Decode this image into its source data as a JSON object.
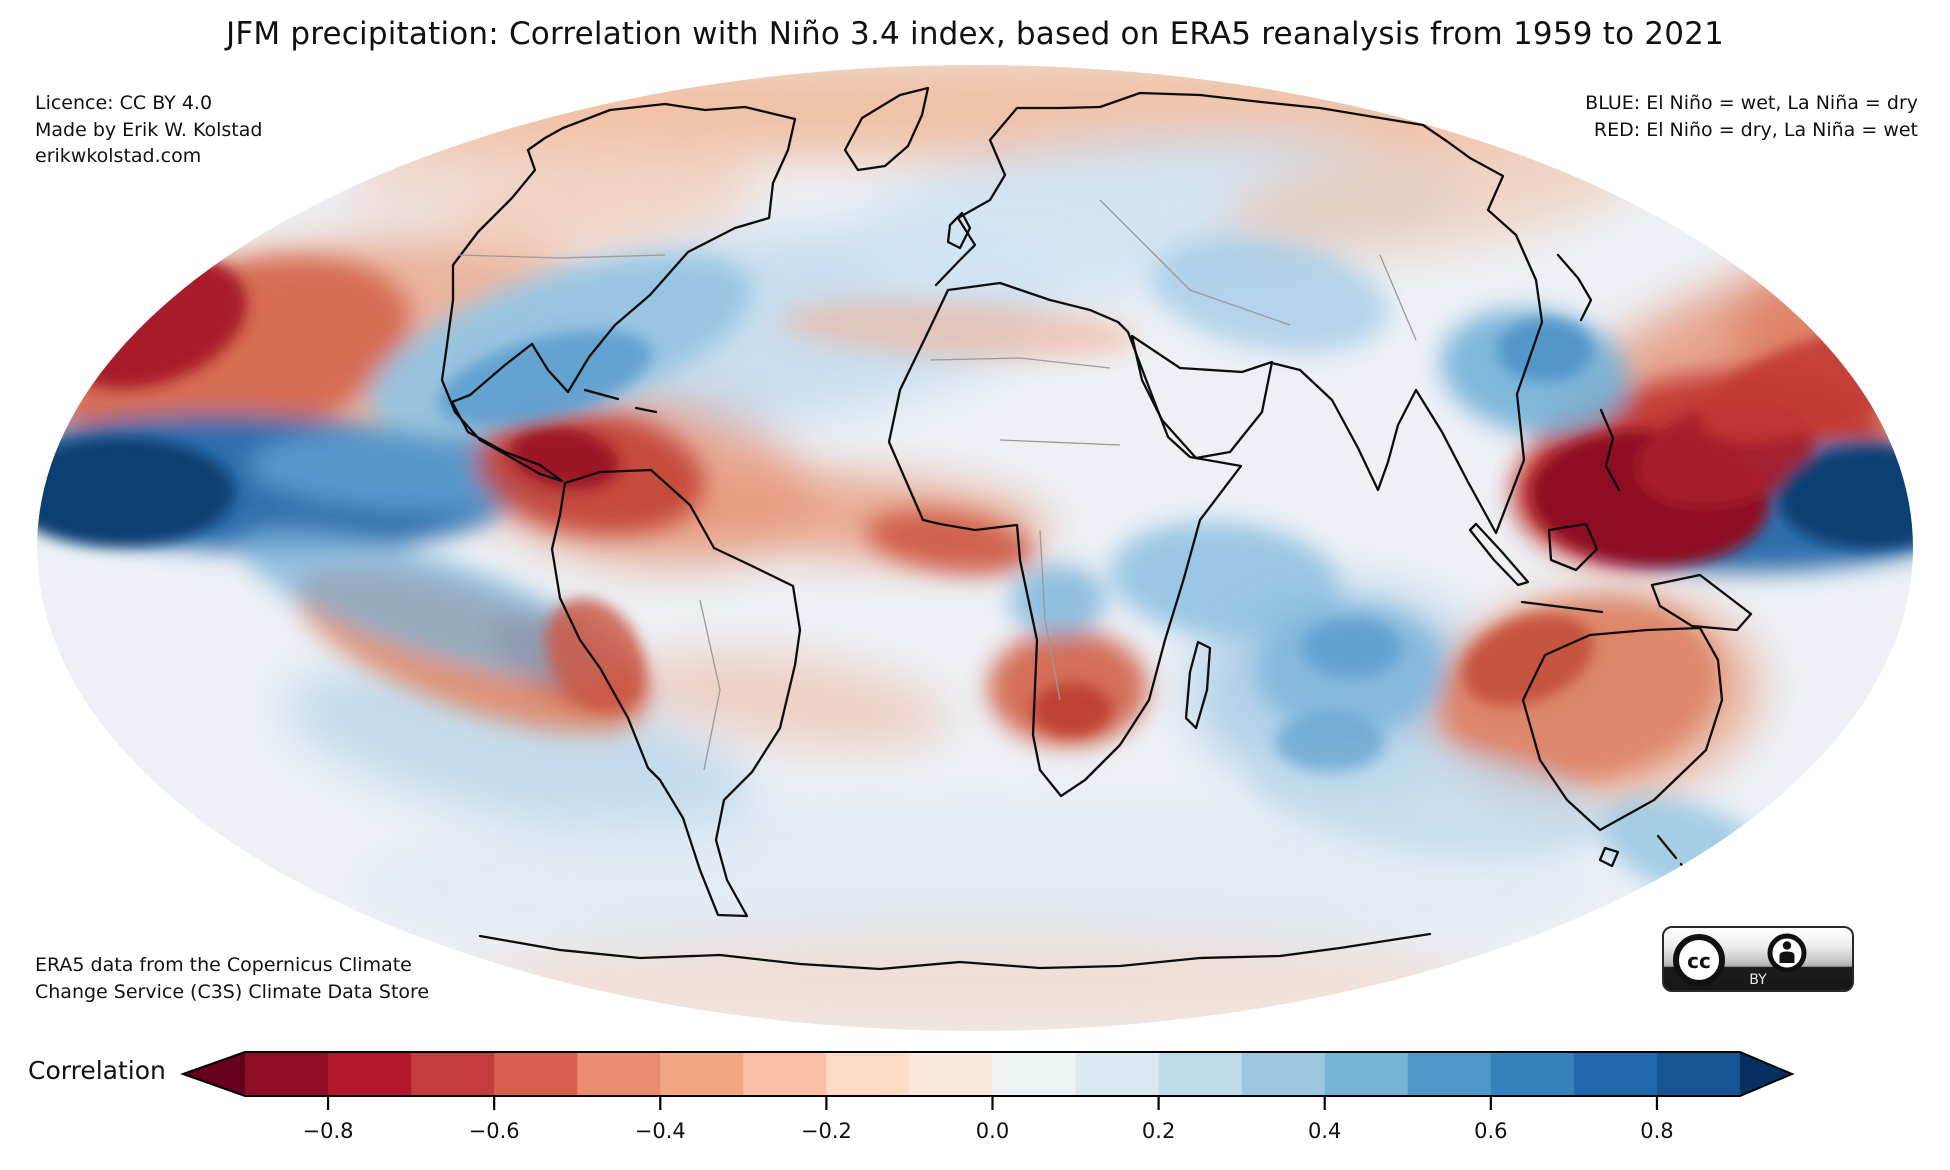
{
  "title": "JFM precipitation: Correlation with Niño 3.4 index, based on ERA5 reanalysis from 1959 to 2021",
  "credits": {
    "line1": "Licence: CC BY 4.0",
    "line2": "Made by Erik W. Kolstad",
    "line3": "erikwkolstad.com"
  },
  "legend": {
    "blue": "BLUE: El Niño = wet, La Niña = dry",
    "red": "RED: El Niño = dry, La Niña = wet"
  },
  "attribution": {
    "line1": "ERA5 data from the Copernicus Climate",
    "line2": "Change Service (C3S) Climate Data Store"
  },
  "badge": {
    "cc": "CC",
    "by": "BY"
  },
  "colorbar": {
    "label": "Correlation",
    "ticks": [
      "−0.8",
      "−0.6",
      "−0.4",
      "−0.2",
      "0.0",
      "0.2",
      "0.4",
      "0.6",
      "0.8"
    ],
    "tick_values": [
      -0.8,
      -0.6,
      -0.4,
      -0.2,
      0.0,
      0.2,
      0.4,
      0.6,
      0.8
    ],
    "range": [
      -0.9,
      0.9
    ],
    "under_color": "#67001f",
    "over_color": "#053061",
    "segment_colors": [
      "#8e0d25",
      "#b2182b",
      "#c43c3d",
      "#d6604d",
      "#e98b6f",
      "#f4a582",
      "#f9c0a6",
      "#fddbc7",
      "#fbe9dc",
      "#edf2f5",
      "#d9e8f1",
      "#c0dceb",
      "#9ac8e0",
      "#78b4d6",
      "#4d98c8",
      "#3582bc",
      "#2268ad",
      "#175493"
    ]
  },
  "chart_data": {
    "type": "heatmap",
    "title": "JFM precipitation: Correlation with Niño 3.4 index, based on ERA5 reanalysis from 1959 to 2021",
    "variable": "Correlation of January–March precipitation with the Niño 3.4 index",
    "period": "1959–2021",
    "source": "ERA5 reanalysis (Copernicus Climate Change Service C3S)",
    "projection": "global elliptical (Mollweide-style)",
    "colormap": "diverging red–blue (RdBu), discrete steps of 0.1 from −0.9 to 0.9, arrow extensions beyond",
    "legend_position": "bottom horizontal colorbar",
    "regions": [
      {
        "region": "Central and eastern equatorial Pacific",
        "correlation": 0.9
      },
      {
        "region": "Western equatorial Pacific / east of New Guinea",
        "correlation": 0.9
      },
      {
        "region": "Maritime Continent / Philippines",
        "correlation": -0.9
      },
      {
        "region": "North-central Pacific (~35°N)",
        "correlation": -0.7
      },
      {
        "region": "Northern South America / Amazon",
        "correlation": -0.7
      },
      {
        "region": "Southern United States / Gulf of Mexico",
        "correlation": 0.5
      },
      {
        "region": "Subtropical North Atlantic",
        "correlation": 0.3
      },
      {
        "region": "Tropical Atlantic / Gulf of Guinea",
        "correlation": -0.4
      },
      {
        "region": "Southeast China coast",
        "correlation": 0.5
      },
      {
        "region": "Central Indian Ocean",
        "correlation": 0.4
      },
      {
        "region": "Western Indian Ocean off East Africa",
        "correlation": 0.4
      },
      {
        "region": "Southern Africa (Angola–Namibia)",
        "correlation": -0.5
      },
      {
        "region": "Australia (north-west)",
        "correlation": -0.5
      },
      {
        "region": "South Pacific convergence zone",
        "correlation": -0.4
      },
      {
        "region": "Mid-latitude South Pacific",
        "correlation": 0.4
      },
      {
        "region": "Europe / Scandinavia",
        "correlation": 0.2
      },
      {
        "region": "Antarctic rim",
        "correlation": -0.1
      }
    ]
  }
}
